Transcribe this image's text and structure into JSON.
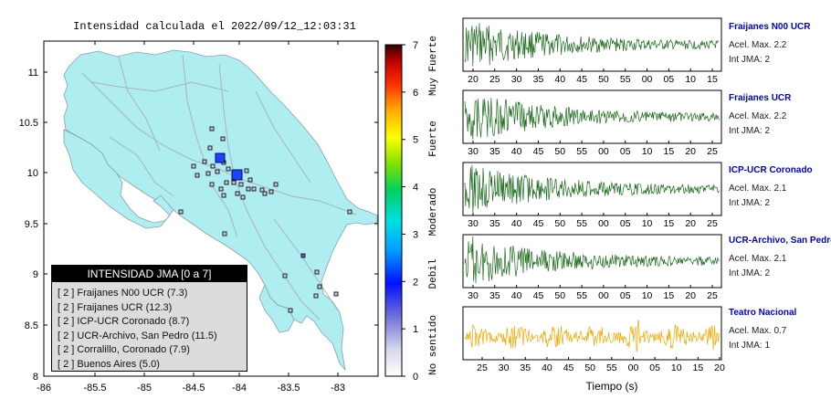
{
  "map": {
    "title": "Intensidad calculada el 2022/09/12_12:03:31",
    "lon_ticks": [
      "-86",
      "-85.5",
      "-85",
      "-84.5",
      "-84",
      "-83.5",
      "-83"
    ],
    "lat_ticks": [
      "11",
      "10.5",
      "10",
      "9.5",
      "9",
      "8.5",
      "8"
    ],
    "land_color": "#aeeef0",
    "marker_color_major": "#1e40ff",
    "marker_color_minor": "#c8c8e8"
  },
  "scale": {
    "ticks": [
      "0",
      "1",
      "2",
      "3",
      "4",
      "5",
      "6",
      "7"
    ],
    "labels": [
      "No sentido",
      "Debil",
      "Moderado",
      "Fuerte",
      "Muy Fuerte"
    ]
  },
  "legend": {
    "header": "INTENSIDAD JMA [0 a 7]",
    "items": [
      "[ 2 ]  Fraijanes N00 UCR (7.3)",
      "[ 2 ]  Fraijanes UCR (12.3)",
      "[ 2 ]  ICP-UCR Coronado (8.7)",
      "[ 2 ]  UCR-Archivo, San Pedro (11.5)",
      "[ 2 ]  Corralillo, Coronado (7.9)",
      "[ 2 ]  Buenos Aires (5.0)"
    ]
  },
  "stations": [
    {
      "name": "Fraijanes N00 UCR",
      "acel": "Acel. Max. 2.2",
      "int": "Int JMA: 2",
      "ticks": [
        "20",
        "25",
        "30",
        "35",
        "40",
        "45",
        "50",
        "55",
        "00",
        "05",
        "10",
        "15"
      ],
      "color": "#1a6b1a"
    },
    {
      "name": "Fraijanes UCR",
      "acel": "Acel. Max. 2.2",
      "int": "Int JMA: 2",
      "ticks": [
        "30",
        "35",
        "40",
        "45",
        "50",
        "55",
        "00",
        "05",
        "10",
        "15",
        "20",
        "25"
      ],
      "color": "#1a6b1a"
    },
    {
      "name": "ICP-UCR Coronado",
      "acel": "Acel. Max. 2.1",
      "int": "Int JMA: 2",
      "ticks": [
        "30",
        "35",
        "40",
        "45",
        "50",
        "55",
        "00",
        "05",
        "10",
        "15",
        "20",
        "25"
      ],
      "color": "#1a6b1a"
    },
    {
      "name": "UCR-Archivo, San Pedro",
      "acel": "Acel. Max. 2.1",
      "int": "Int JMA: 2",
      "ticks": [
        "30",
        "35",
        "40",
        "45",
        "50",
        "55",
        "00",
        "05",
        "10",
        "15",
        "20",
        "25"
      ],
      "color": "#1a6b1a"
    },
    {
      "name": "Teatro Nacional",
      "acel": "Acel. Max. 0.7",
      "int": "Int JMA: 1",
      "ticks": [
        "25",
        "30",
        "35",
        "40",
        "45",
        "50",
        "55",
        "00",
        "05",
        "10",
        "15",
        "20"
      ],
      "color": "#f0a800"
    }
  ],
  "waveform_xlabel": "Tiempo (s)"
}
